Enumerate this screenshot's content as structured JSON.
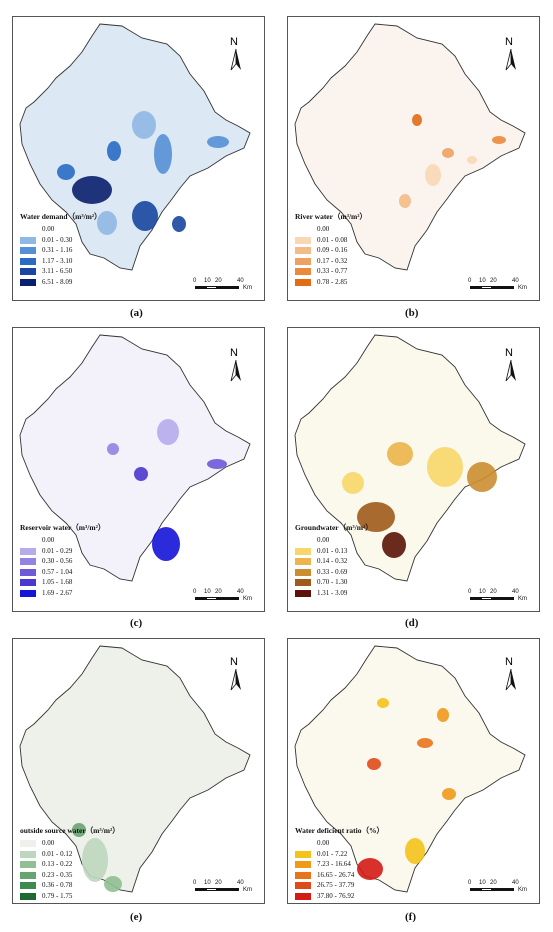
{
  "panels": [
    {
      "caption": "(a)",
      "legend_title": "Water demand（m³/m²）",
      "fill": "#dce8f3",
      "region": "#4a8fd6",
      "classes": [
        {
          "label": "0.00",
          "color": ""
        },
        {
          "label": "0.01 - 0.30",
          "color": "#8fb8e5"
        },
        {
          "label": "0.31 - 1.16",
          "color": "#5590d6"
        },
        {
          "label": "1.17 - 3.10",
          "color": "#2a6cc4"
        },
        {
          "label": "3.11 - 6.50",
          "color": "#1846a0"
        },
        {
          "label": "6.51 - 8.09",
          "color": "#0a1f6e"
        }
      ]
    },
    {
      "caption": "(b)",
      "legend_title": "River water（m³/m²）",
      "fill": "#fbf4ee",
      "region": "#efb57d",
      "classes": [
        {
          "label": "0.00",
          "color": ""
        },
        {
          "label": "0.01 - 0.08",
          "color": "#f8d7b5"
        },
        {
          "label": "0.09 - 0.16",
          "color": "#f3bb85"
        },
        {
          "label": "0.17 - 0.32",
          "color": "#eea160"
        },
        {
          "label": "0.33 - 0.77",
          "color": "#ea8a3c"
        },
        {
          "label": "0.78 - 2.85",
          "color": "#e06c16"
        }
      ]
    },
    {
      "caption": "(c)",
      "legend_title": "Reservoir water（m³/m²）",
      "fill": "#f3f2fb",
      "region": "#9b8fe0",
      "classes": [
        {
          "label": "0.00",
          "color": ""
        },
        {
          "label": "0.01 - 0.29",
          "color": "#b6acec"
        },
        {
          "label": "0.30 - 0.56",
          "color": "#9184e2"
        },
        {
          "label": "0.57 - 1.04",
          "color": "#6e5ad8"
        },
        {
          "label": "1.05 - 1.68",
          "color": "#4a38cf"
        },
        {
          "label": "1.69 - 2.67",
          "color": "#1414d8"
        }
      ]
    },
    {
      "caption": "(d)",
      "legend_title": "Groundwater（m³/m²）",
      "fill": "#fbf8ec",
      "region": "#e8b34a",
      "classes": [
        {
          "label": "0.00",
          "color": ""
        },
        {
          "label": "0.01 - 0.13",
          "color": "#f7d66a"
        },
        {
          "label": "0.14 - 0.32",
          "color": "#ecb44a"
        },
        {
          "label": "0.33 - 0.69",
          "color": "#cc8d32"
        },
        {
          "label": "0.70 - 1.30",
          "color": "#a05a1c"
        },
        {
          "label": "1.31 - 3.09",
          "color": "#5a1308"
        }
      ]
    },
    {
      "caption": "(e)",
      "legend_title": "outside source water（m³/m²）",
      "fill": "#eef0ea",
      "region": "#3f8a50",
      "classes": [
        {
          "label": "0.00",
          "color": "#eef0ea"
        },
        {
          "label": "0.01 - 0.12",
          "color": "#bcd7bd"
        },
        {
          "label": "0.13 - 0.22",
          "color": "#8fbf92"
        },
        {
          "label": "0.23 - 0.35",
          "color": "#68a471"
        },
        {
          "label": "0.36 - 0.78",
          "color": "#3f8a50"
        },
        {
          "label": "0.79 - 1.75",
          "color": "#1f6a33"
        }
      ]
    },
    {
      "caption": "(f)",
      "legend_title": "Water deficient ratio（%）",
      "fill": "#fbf8ee",
      "region": "#e8961e",
      "classes": [
        {
          "label": "0.00",
          "color": ""
        },
        {
          "label": "0.01 - 7.22",
          "color": "#f4c21a"
        },
        {
          "label": "7.23 - 16.64",
          "color": "#ee9a1a"
        },
        {
          "label": "16.65 - 26.74",
          "color": "#e8741a"
        },
        {
          "label": "26.75 - 37.79",
          "color": "#e04a18"
        },
        {
          "label": "37.80 - 76.92",
          "color": "#d41a14"
        }
      ]
    }
  ],
  "scale_bar": {
    "labels": [
      "0",
      "10",
      "20",
      "40"
    ],
    "unit": "Km"
  },
  "north_label": "N"
}
